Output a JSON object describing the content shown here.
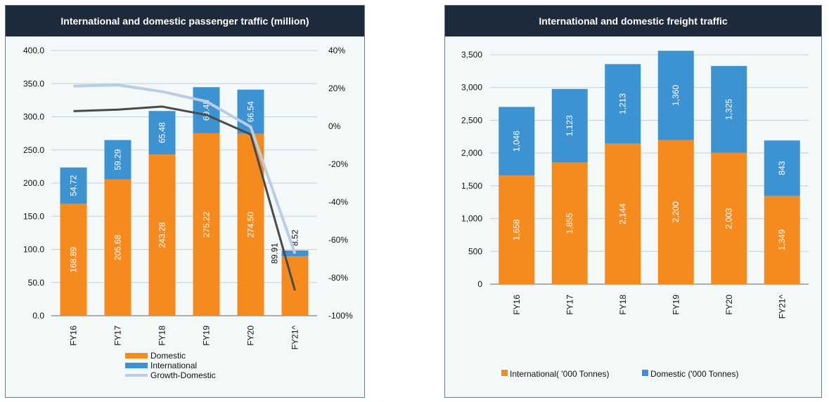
{
  "colors": {
    "domestic": "#f58a1f",
    "international": "#3d93d2",
    "growth_domestic": "#b9cde4",
    "growth_international": "#4a4a4a",
    "header_bg": "#1c2a3b"
  },
  "chart_data": [
    {
      "type": "bar",
      "stacked": true,
      "title": "International and domestic passenger traffic (million)",
      "categories": [
        "FY16",
        "FY17",
        "FY18",
        "FY19",
        "FY20",
        "FY21^"
      ],
      "series": [
        {
          "name": "Domestic",
          "values": [
            168.89,
            205.68,
            243.28,
            275.22,
            274.5,
            89.91
          ],
          "labels": [
            "168.89",
            "205.68",
            "243.28",
            "275.22",
            "274.50",
            "89.91"
          ]
        },
        {
          "name": "International",
          "values": [
            54.72,
            59.29,
            65.48,
            69.48,
            66.54,
            8.52
          ],
          "labels": [
            "54.72",
            "59.29",
            "65.48",
            "69.48",
            "66.54",
            "8.52"
          ]
        }
      ],
      "line_series": [
        {
          "name": "Growth-Domestic",
          "axis": "right",
          "values": [
            21.2,
            21.8,
            18.3,
            13.1,
            -0.3,
            -67.2
          ]
        },
        {
          "name": "",
          "axis": "right",
          "values": [
            8.0,
            8.8,
            10.4,
            6.0,
            -4.3,
            -86.7
          ]
        }
      ],
      "ylim": [
        0,
        400
      ],
      "yticks": [
        "0.0",
        "50.0",
        "100.0",
        "150.0",
        "200.0",
        "250.0",
        "300.0",
        "350.0",
        "400.0"
      ],
      "y2lim": [
        -100,
        40
      ],
      "y2ticks": [
        "-100%",
        "-80%",
        "-60%",
        "-40%",
        "-20%",
        "0%",
        "20%",
        "40%"
      ],
      "grid": true,
      "legend": "bottom",
      "legend_entries": [
        "Domestic",
        "International",
        "Growth-Domestic"
      ]
    },
    {
      "type": "bar",
      "stacked": true,
      "title": "International and domestic freight traffic",
      "categories": [
        "FY16",
        "FY17",
        "FY18",
        "FY19",
        "FY20",
        "FY21^"
      ],
      "series": [
        {
          "name": "International( '000 Tonnes)",
          "values": [
            1658,
            1855,
            2144,
            2200,
            2003,
            1349
          ],
          "labels": [
            "1,658",
            "1,855",
            "2,144",
            "2,200",
            "2,003",
            "1,349"
          ]
        },
        {
          "name": "Domestic ('000 Tonnes)",
          "values": [
            1046,
            1123,
            1213,
            1360,
            1325,
            843
          ],
          "labels": [
            "1,046",
            "1,123",
            "1,213",
            "1,360",
            "1,325",
            "843"
          ]
        }
      ],
      "ylim": [
        0,
        3500
      ],
      "yticks": [
        "0",
        "500",
        "1,000",
        "1,500",
        "2,000",
        "2,500",
        "3,000",
        "3,500"
      ],
      "grid": true,
      "legend": "bottom"
    }
  ]
}
